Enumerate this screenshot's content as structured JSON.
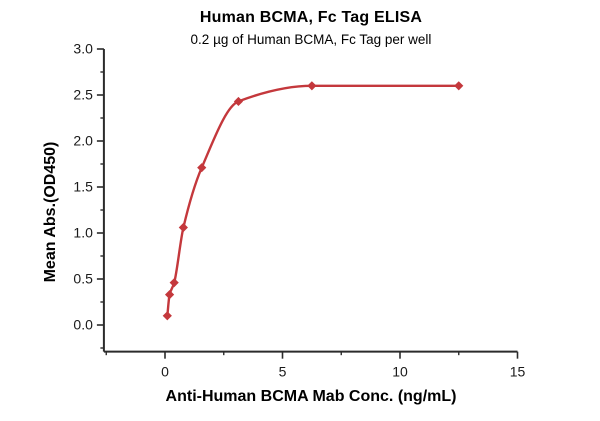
{
  "title": "Human BCMA, Fc Tag ELISA",
  "subtitle": "0.2 µg of Human BCMA, Fc Tag per well",
  "chart_data": {
    "type": "scatter",
    "title": "Human BCMA, Fc Tag ELISA",
    "subtitle": "0.2 µg of Human BCMA, Fc Tag per well",
    "xlabel": "Anti-Human BCMA Mab Conc. (ng/mL)",
    "ylabel": "Mean Abs.(OD450)",
    "x": [
      0.098,
      0.195,
      0.391,
      0.781,
      1.563,
      3.125,
      6.25,
      12.5
    ],
    "y": [
      0.1,
      0.33,
      0.46,
      1.06,
      1.71,
      2.43,
      2.6,
      2.6
    ],
    "fit_curve": "4PL sigmoid through data points, plateau at 2.60",
    "marker": "diamond",
    "grid": false,
    "legend": "none",
    "xlim": [
      -2.6,
      15
    ],
    "ylim": [
      -0.29,
      3.0
    ],
    "x_ticks": {
      "major_values": [
        0,
        5,
        10,
        15
      ],
      "major_labels": [
        "0",
        "5",
        "10",
        "15"
      ],
      "minor_values": [
        -2.5,
        2.5,
        7.5,
        12.5
      ]
    },
    "y_ticks": {
      "major_values": [
        0,
        0.5,
        1,
        1.5,
        2,
        2.5,
        3
      ],
      "major_labels": [
        "0.0",
        "0.5",
        "1.0",
        "1.5",
        "2.0",
        "2.5",
        "3.0"
      ],
      "minor_values": [
        -0.25,
        0.25,
        0.75,
        1.25,
        1.75,
        2.25,
        2.75
      ]
    },
    "colors": {
      "line": "#c4383c",
      "marker": "#c4383c",
      "axis": "#2b2b2b",
      "tick_text": "#1a1a1a",
      "background": "#ffffff"
    }
  }
}
